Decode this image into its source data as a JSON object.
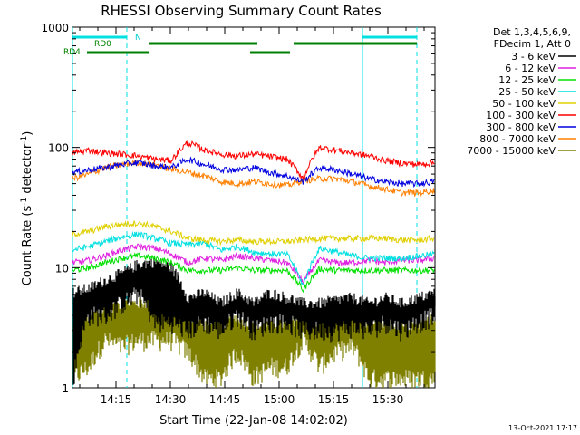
{
  "chart_data": {
    "type": "line",
    "title": "RHESSI Observing Summary Count Rates",
    "xlabel": "Start Time (22-Jan-08 14:02:02)",
    "ylabel": "Count Rate (s",
    "ylabel_sup1": "-1",
    "ylabel_mid": " detector",
    "ylabel_sup2": "-1",
    "ylabel_end": ")",
    "yscale": "log",
    "ylim": [
      1,
      1000
    ],
    "xlim_min": [
      1,
      101
    ],
    "y_tick_labels": [
      "1",
      "10",
      "100",
      "1000"
    ],
    "x_tick_labels": [
      "14:15",
      "14:30",
      "14:45",
      "15:00",
      "15:15",
      "15:30"
    ],
    "x_ticks_min": [
      13,
      28,
      43,
      58,
      73,
      88
    ],
    "legend_header": [
      "Det 1,3,4,5,6,9,",
      "FDecim 1, Att 0"
    ],
    "legend_position": "right",
    "timestamp": "13-Oct-2021 17:17",
    "flag_labels": {
      "rd0": "RD0",
      "rd4": "RD4",
      "n": "N"
    },
    "flags": {
      "night": [
        [
          1,
          16
        ],
        [
          81,
          96
        ]
      ],
      "rd0": [
        [
          22,
          52
        ],
        [
          62,
          96
        ]
      ],
      "rd4": [
        [
          5,
          22
        ],
        [
          50,
          61
        ]
      ]
    },
    "night_lines_min": [
      1,
      16,
      81,
      96
    ],
    "gap_min": [
      [
        22,
        23
      ],
      [
        50,
        51
      ],
      [
        61,
        62
      ]
    ],
    "series": [
      {
        "name": "3 - 6 keV",
        "color": "#000000",
        "kind": "fill",
        "lo": [
          1,
          4,
          4,
          5,
          6,
          3.5,
          3.5,
          3,
          3.5,
          3,
          4,
          3,
          3.5,
          3.5,
          3,
          3,
          3,
          3.2,
          3,
          3.5,
          3,
          3.5,
          4
        ],
        "values": [
          5.5,
          6,
          7,
          8,
          9.5,
          10,
          9,
          5,
          5.5,
          4.5,
          5.5,
          4.5,
          5.5,
          5,
          4.5,
          4.5,
          4.8,
          5,
          4.5,
          5,
          4.5,
          5,
          5.5
        ]
      },
      {
        "name": "6 - 12 keV",
        "color": "#e020e0",
        "values": [
          11,
          11.5,
          12.5,
          14,
          15,
          14.5,
          13,
          11,
          12,
          11.5,
          12.5,
          12,
          11.5,
          11,
          7.5,
          11.5,
          11,
          11,
          11.5,
          11,
          11.5,
          11.5,
          12
        ]
      },
      {
        "name": "12 - 25 keV",
        "color": "#00e000",
        "values": [
          9.5,
          10,
          11,
          12,
          12.5,
          12,
          11,
          9.5,
          9.5,
          9.5,
          10,
          9.5,
          9.5,
          9.5,
          6.5,
          9.8,
          9.5,
          9.5,
          9.5,
          9.5,
          9.5,
          9.5,
          9.5
        ]
      },
      {
        "name": "25 - 50 keV",
        "color": "#00e0e0",
        "values": [
          14,
          15,
          16.5,
          18,
          19,
          17.5,
          16,
          15.5,
          16,
          14,
          15,
          13.5,
          13,
          13,
          7,
          14.5,
          13.5,
          12.5,
          12,
          12,
          12,
          12.5,
          13
        ]
      },
      {
        "name": "50 - 100 keV",
        "color": "#e0d000",
        "values": [
          19,
          20,
          22,
          23,
          23.5,
          22,
          20,
          17.5,
          17,
          16.5,
          17,
          16.5,
          16.5,
          16.5,
          17,
          17.5,
          17.5,
          17.5,
          17.5,
          17.5,
          17,
          17,
          17.5
        ]
      },
      {
        "name": "100 - 300 keV",
        "color": "#ff0000",
        "values": [
          90,
          95,
          90,
          88,
          85,
          80,
          78,
          110,
          95,
          88,
          85,
          88,
          84,
          80,
          55,
          100,
          95,
          90,
          85,
          78,
          74,
          72,
          75
        ]
      },
      {
        "name": "300 - 800 keV",
        "color": "#0000e0",
        "values": [
          62,
          65,
          68,
          72,
          75,
          70,
          68,
          80,
          72,
          66,
          65,
          68,
          62,
          58,
          52,
          68,
          65,
          60,
          55,
          52,
          50,
          50,
          52
        ]
      },
      {
        "name": "800 - 7000 keV",
        "color": "#ff8000",
        "values": [
          55,
          60,
          68,
          72,
          75,
          72,
          66,
          62,
          58,
          52,
          50,
          52,
          50,
          48,
          53,
          55,
          55,
          52,
          48,
          45,
          42,
          42,
          44
        ]
      },
      {
        "name": "7000 - 15000 keV",
        "color": "#808000",
        "kind": "fill",
        "lo": [
          1.2,
          1.5,
          2.5,
          2.2,
          2.5,
          2.5,
          2.5,
          2,
          1.2,
          1.2,
          2,
          1.2,
          1.5,
          1.5,
          2.5,
          1.5,
          2,
          2.2,
          1.2,
          1.2,
          1.2,
          1.2,
          1.2
        ],
        "values": [
          3,
          3.5,
          4,
          4.5,
          4.5,
          4.5,
          4,
          3.5,
          3,
          3,
          3.5,
          2.8,
          3,
          3,
          3.5,
          3,
          3.5,
          3.5,
          3,
          3,
          3,
          3,
          3.5
        ]
      }
    ],
    "red_left_cap": 65,
    "black_solid_segment": [
      [
        2,
        4.5
      ],
      [
        12,
        4.5
      ]
    ]
  }
}
